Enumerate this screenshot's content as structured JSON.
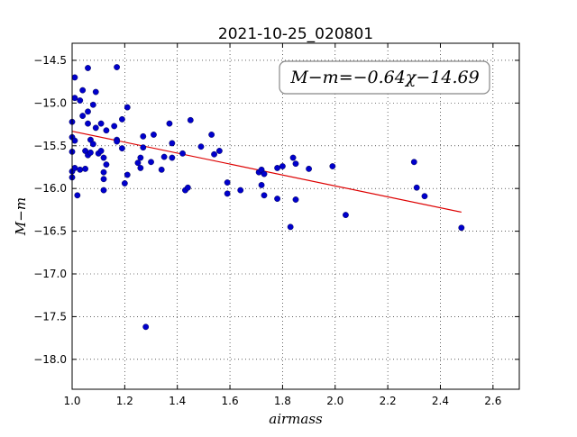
{
  "chart_data": {
    "type": "scatter",
    "title": "2021-10-25_020801",
    "xlabel": "airmass",
    "ylabel": "M−m",
    "annotation": "M−m=−0.64χ−14.69",
    "xlim": [
      1.0,
      2.7
    ],
    "ylim": [
      -18.35,
      -14.3
    ],
    "x_ticks": [
      1.0,
      1.2,
      1.4,
      1.6,
      1.8,
      2.0,
      2.2,
      2.4,
      2.6
    ],
    "x_tick_labels": [
      "1.0",
      "1.2",
      "1.4",
      "1.6",
      "1.8",
      "2.0",
      "2.2",
      "2.4",
      "2.6"
    ],
    "y_ticks": [
      -14.5,
      -15.0,
      -15.5,
      -16.0,
      -16.5,
      -17.0,
      -17.5,
      -18.0
    ],
    "y_tick_labels": [
      "−14.5",
      "−15.0",
      "−15.5",
      "−16.0",
      "−16.5",
      "−17.0",
      "−17.5",
      "−18.0"
    ],
    "grid": true,
    "point_color": "#0000cc",
    "fit_color": "#dd0000",
    "fit": {
      "slope": -0.64,
      "intercept": -14.69,
      "x_range": [
        1.0,
        2.48
      ]
    },
    "points": [
      [
        1.0,
        -15.22
      ],
      [
        1.0,
        -15.4
      ],
      [
        1.0,
        -15.57
      ],
      [
        1.0,
        -15.8
      ],
      [
        1.0,
        -15.87
      ],
      [
        1.01,
        -14.7
      ],
      [
        1.01,
        -14.94
      ],
      [
        1.01,
        -15.44
      ],
      [
        1.01,
        -15.76
      ],
      [
        1.02,
        -16.08
      ],
      [
        1.03,
        -14.97
      ],
      [
        1.03,
        -15.78
      ],
      [
        1.04,
        -14.85
      ],
      [
        1.04,
        -15.15
      ],
      [
        1.05,
        -15.77
      ],
      [
        1.05,
        -15.56
      ],
      [
        1.06,
        -15.1
      ],
      [
        1.06,
        -15.24
      ],
      [
        1.06,
        -15.61
      ],
      [
        1.06,
        -14.59
      ],
      [
        1.07,
        -15.58
      ],
      [
        1.07,
        -15.43
      ],
      [
        1.08,
        -15.48
      ],
      [
        1.08,
        -15.02
      ],
      [
        1.09,
        -14.87
      ],
      [
        1.09,
        -15.29
      ],
      [
        1.1,
        -15.59
      ],
      [
        1.11,
        -15.24
      ],
      [
        1.11,
        -15.56
      ],
      [
        1.12,
        -15.64
      ],
      [
        1.12,
        -15.81
      ],
      [
        1.12,
        -15.89
      ],
      [
        1.12,
        -16.02
      ],
      [
        1.13,
        -15.32
      ],
      [
        1.13,
        -15.72
      ],
      [
        1.16,
        -15.27
      ],
      [
        1.17,
        -15.43
      ],
      [
        1.17,
        -15.45
      ],
      [
        1.17,
        -14.58
      ],
      [
        1.19,
        -15.53
      ],
      [
        1.19,
        -15.19
      ],
      [
        1.2,
        -15.94
      ],
      [
        1.21,
        -15.84
      ],
      [
        1.21,
        -15.05
      ],
      [
        1.25,
        -15.7
      ],
      [
        1.26,
        -15.76
      ],
      [
        1.26,
        -15.64
      ],
      [
        1.27,
        -15.52
      ],
      [
        1.27,
        -15.39
      ],
      [
        1.28,
        -17.62
      ],
      [
        1.3,
        -15.69
      ],
      [
        1.31,
        -15.37
      ],
      [
        1.34,
        -15.78
      ],
      [
        1.35,
        -15.63
      ],
      [
        1.37,
        -15.24
      ],
      [
        1.38,
        -15.47
      ],
      [
        1.38,
        -15.64
      ],
      [
        1.42,
        -15.59
      ],
      [
        1.43,
        -16.02
      ],
      [
        1.44,
        -15.99
      ],
      [
        1.45,
        -15.2
      ],
      [
        1.49,
        -15.51
      ],
      [
        1.53,
        -15.37
      ],
      [
        1.54,
        -15.6
      ],
      [
        1.56,
        -15.56
      ],
      [
        1.59,
        -16.06
      ],
      [
        1.59,
        -15.93
      ],
      [
        1.64,
        -16.02
      ],
      [
        1.71,
        -15.81
      ],
      [
        1.72,
        -15.96
      ],
      [
        1.72,
        -15.78
      ],
      [
        1.73,
        -15.83
      ],
      [
        1.73,
        -16.08
      ],
      [
        1.78,
        -16.12
      ],
      [
        1.78,
        -15.76
      ],
      [
        1.8,
        -15.74
      ],
      [
        1.83,
        -16.45
      ],
      [
        1.84,
        -15.64
      ],
      [
        1.85,
        -16.13
      ],
      [
        1.85,
        -15.71
      ],
      [
        1.9,
        -15.77
      ],
      [
        1.99,
        -15.74
      ],
      [
        2.04,
        -16.31
      ],
      [
        2.3,
        -15.69
      ],
      [
        2.31,
        -15.99
      ],
      [
        2.34,
        -16.09
      ],
      [
        2.48,
        -16.46
      ]
    ]
  }
}
